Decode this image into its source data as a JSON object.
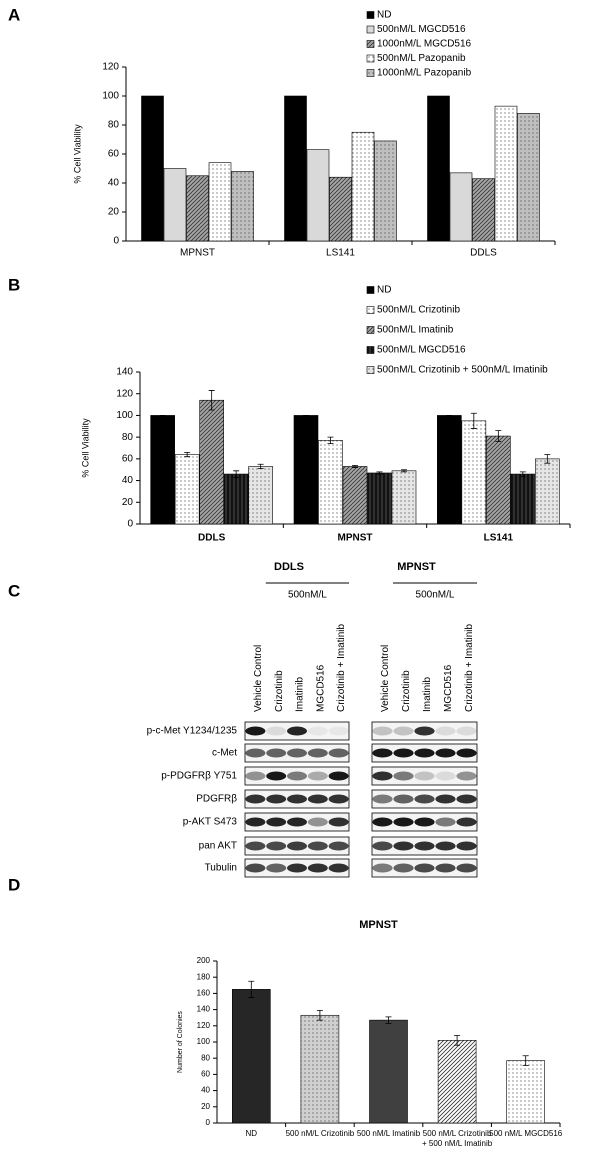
{
  "chart_data": [
    {
      "panel": "A",
      "type": "bar",
      "ylabel": "% Cell Viability",
      "categories": [
        "MPNST",
        "LS141",
        "DDLS"
      ],
      "series": [
        {
          "name": "ND",
          "color": "#000000",
          "pattern": "solid",
          "values": [
            100,
            100,
            100
          ]
        },
        {
          "name": "500nM/L MGCD516",
          "color": "#d9d9d9",
          "pattern": "solid",
          "values": [
            50,
            63,
            47
          ]
        },
        {
          "name": "1000nM/L MGCD516",
          "color": "#a6a6a6",
          "pattern": "hatch",
          "values": [
            45,
            44,
            43
          ]
        },
        {
          "name": "500nM/L Pazopanib",
          "color": "#ffffff",
          "pattern": "dots",
          "values": [
            54,
            75,
            93
          ]
        },
        {
          "name": "1000nM/L Pazopanib",
          "color": "#bfbfbf",
          "pattern": "dots",
          "values": [
            48,
            69,
            88
          ]
        }
      ],
      "ylim": [
        0,
        120
      ],
      "yticks": [
        0,
        20,
        40,
        60,
        80,
        100,
        120
      ]
    },
    {
      "panel": "B",
      "type": "bar",
      "ylabel": "% Cell Viability",
      "categories": [
        "DDLS",
        "MPNST",
        "LS141"
      ],
      "series": [
        {
          "name": "ND",
          "color": "#000000",
          "pattern": "solid",
          "values": [
            100,
            100,
            100
          ],
          "errors": [
            0,
            0,
            0
          ]
        },
        {
          "name": "500nM/L Crizotinib",
          "color": "#ffffff",
          "pattern": "dots",
          "values": [
            64,
            77,
            95
          ],
          "errors": [
            2,
            3,
            7
          ]
        },
        {
          "name": "500nM/L Imatinib",
          "color": "#a6a6a6",
          "pattern": "hatch",
          "values": [
            114,
            53,
            81
          ],
          "errors": [
            9,
            1,
            5
          ]
        },
        {
          "name": "500nM/L MGCD516",
          "color": "#111111",
          "pattern": "vlines",
          "values": [
            46,
            47,
            46
          ],
          "errors": [
            3,
            1,
            2
          ]
        },
        {
          "name": "500nM/L Crizotinib + 500nM/L Imatinib",
          "color": "#e6e6e6",
          "pattern": "dots",
          "values": [
            53,
            49,
            60
          ],
          "errors": [
            2,
            1,
            4
          ]
        }
      ],
      "ylim": [
        0,
        140
      ],
      "yticks": [
        0,
        20,
        40,
        60,
        80,
        100,
        120,
        140
      ]
    },
    {
      "panel": "D",
      "type": "bar",
      "title": "MPNST",
      "ylabel": "Number of Colonies",
      "categories": [
        "ND",
        "500 nM/L Crizotinib",
        "500 nM/L Imatinib",
        "500 nM/L Crizotinib + 500 nM/L Imatinib",
        "500 nM/L MGCD516"
      ],
      "values": [
        165,
        133,
        127,
        102,
        77
      ],
      "errors": [
        10,
        6,
        4,
        6,
        6
      ],
      "colors": [
        "#262626",
        "#d0d0d0",
        "#404040",
        "#ffffff",
        "#ffffff"
      ],
      "patterns": [
        "solid",
        "dots",
        "solid",
        "hatch",
        "dots"
      ],
      "ylim": [
        0,
        200
      ],
      "yticks": [
        0,
        20,
        40,
        60,
        80,
        100,
        120,
        140,
        160,
        180,
        200
      ]
    }
  ],
  "blot": {
    "panel": "C",
    "groups": [
      {
        "title": "DDLS",
        "dose": "500nM/L"
      },
      {
        "title": "MPNST",
        "dose": "500nM/L"
      }
    ],
    "lanes": [
      "Vehicle Control",
      "Crizotinib",
      "Imatinib",
      "MGCD516",
      "Crizotinib + Imatinib"
    ],
    "rows": [
      "p-c-Met Y1234/1235",
      "c-Met",
      "p-PDGFRβ Y751",
      "PDGFRβ",
      "p-AKT S473",
      "pan AKT",
      "Tubulin"
    ]
  }
}
